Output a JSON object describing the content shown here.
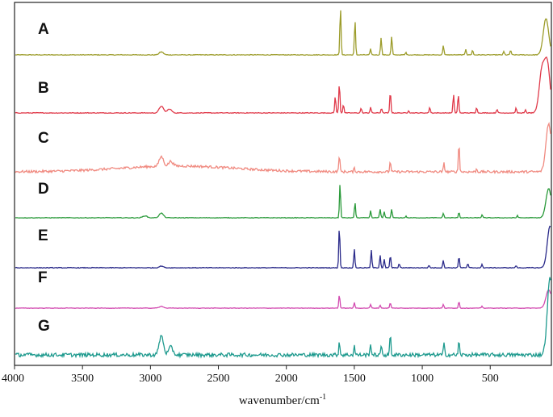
{
  "chart_data": {
    "type": "line",
    "xlabel": "wavenumber/cm",
    "xlabel_superscript": "-1",
    "xlim": [
      4000,
      50
    ],
    "x_reversed": true,
    "x_ticks": [
      4000,
      3500,
      3000,
      2500,
      2000,
      1500,
      1000,
      500
    ],
    "y_ticks_shown": false,
    "grid": false,
    "legend": "none",
    "series": [
      {
        "name": "A",
        "color": "#9c9c2a",
        "peaks": [
          [
            2920,
            0.06
          ],
          [
            1602,
            1.0
          ],
          [
            1495,
            0.72
          ],
          [
            1380,
            0.12
          ],
          [
            1303,
            0.36
          ],
          [
            1225,
            0.38
          ],
          [
            1120,
            0.05
          ],
          [
            845,
            0.2
          ],
          [
            680,
            0.12
          ],
          [
            630,
            0.1
          ],
          [
            400,
            0.07
          ],
          [
            350,
            0.1
          ],
          [
            90,
            0.75
          ]
        ]
      },
      {
        "name": "B",
        "color": "#e03a4a",
        "peaks": [
          [
            2920,
            0.14
          ],
          [
            2860,
            0.08
          ],
          [
            1640,
            0.35
          ],
          [
            1610,
            0.62
          ],
          [
            1580,
            0.18
          ],
          [
            1450,
            0.1
          ],
          [
            1380,
            0.12
          ],
          [
            1300,
            0.1
          ],
          [
            1235,
            0.45
          ],
          [
            1100,
            0.05
          ],
          [
            945,
            0.12
          ],
          [
            770,
            0.38
          ],
          [
            735,
            0.38
          ],
          [
            600,
            0.12
          ],
          [
            450,
            0.08
          ],
          [
            310,
            0.1
          ],
          [
            240,
            0.06
          ],
          [
            120,
            0.85
          ],
          [
            80,
            1.0
          ]
        ]
      },
      {
        "name": "C",
        "color": "#f08a80",
        "peaks": [
          [
            2920,
            0.2
          ],
          [
            2850,
            0.1
          ],
          [
            1610,
            0.35
          ],
          [
            1500,
            0.08
          ],
          [
            1235,
            0.22
          ],
          [
            840,
            0.18
          ],
          [
            730,
            0.6
          ],
          [
            600,
            0.06
          ],
          [
            70,
            1.0
          ]
        ]
      },
      {
        "name": "D",
        "color": "#2a9a3a",
        "peaks": [
          [
            3040,
            0.05
          ],
          [
            2920,
            0.12
          ],
          [
            1605,
            0.88
          ],
          [
            1495,
            0.4
          ],
          [
            1380,
            0.18
          ],
          [
            1310,
            0.22
          ],
          [
            1280,
            0.16
          ],
          [
            1225,
            0.22
          ],
          [
            1120,
            0.04
          ],
          [
            845,
            0.12
          ],
          [
            730,
            0.15
          ],
          [
            560,
            0.08
          ],
          [
            300,
            0.06
          ],
          [
            70,
            0.75
          ]
        ]
      },
      {
        "name": "E",
        "color": "#2a2a8a",
        "peaks": [
          [
            2920,
            0.04
          ],
          [
            1610,
            1.0
          ],
          [
            1500,
            0.45
          ],
          [
            1375,
            0.42
          ],
          [
            1310,
            0.3
          ],
          [
            1280,
            0.2
          ],
          [
            1235,
            0.3
          ],
          [
            1170,
            0.1
          ],
          [
            950,
            0.06
          ],
          [
            845,
            0.18
          ],
          [
            730,
            0.28
          ],
          [
            665,
            0.1
          ],
          [
            560,
            0.08
          ],
          [
            310,
            0.05
          ],
          [
            60,
            1.0
          ]
        ]
      },
      {
        "name": "F",
        "color": "#d24ab0",
        "peaks": [
          [
            2920,
            0.06
          ],
          [
            1610,
            0.45
          ],
          [
            1500,
            0.18
          ],
          [
            1380,
            0.12
          ],
          [
            1310,
            0.1
          ],
          [
            1235,
            0.18
          ],
          [
            845,
            0.12
          ],
          [
            730,
            0.22
          ],
          [
            560,
            0.06
          ],
          [
            70,
            0.6
          ]
        ]
      },
      {
        "name": "G",
        "color": "#1e9a8e",
        "peaks": [
          [
            2920,
            0.25
          ],
          [
            2850,
            0.1
          ],
          [
            1610,
            0.18
          ],
          [
            1500,
            0.12
          ],
          [
            1380,
            0.16
          ],
          [
            1300,
            0.12
          ],
          [
            1235,
            0.28
          ],
          [
            840,
            0.15
          ],
          [
            730,
            0.18
          ],
          [
            60,
            1.0
          ]
        ]
      }
    ]
  }
}
